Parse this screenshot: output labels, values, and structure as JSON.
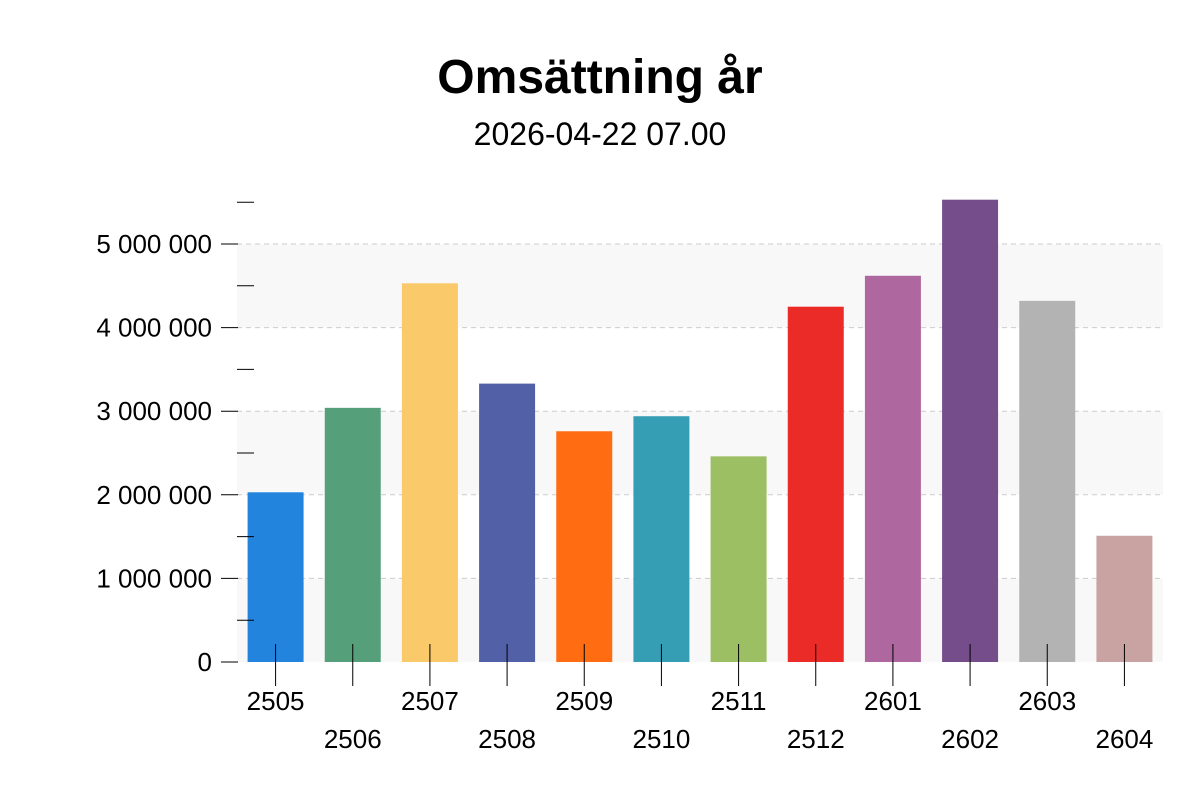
{
  "chart_data": {
    "type": "bar",
    "title": "Omsättning år",
    "subtitle": "2026-04-22 07.00",
    "xlabel": "",
    "ylabel": "",
    "categories": [
      "2505",
      "2506",
      "2507",
      "2508",
      "2509",
      "2510",
      "2511",
      "2512",
      "2601",
      "2602",
      "2603",
      "2604"
    ],
    "values": [
      2030000,
      3040000,
      4530000,
      3330000,
      2760000,
      2940000,
      2460000,
      4250000,
      4620000,
      5530000,
      4320000,
      1510000
    ],
    "colors": [
      "#2384DE",
      "#55A07A",
      "#FAC96A",
      "#5260A8",
      "#FF6C12",
      "#359EB4",
      "#9DBF63",
      "#EA2B28",
      "#AF679F",
      "#754D8A",
      "#B3B3B3",
      "#C9A3A2"
    ],
    "ylim": [
      0,
      5500000
    ],
    "yticks": [
      {
        "value": 0,
        "label": "0"
      },
      {
        "value": 1000000,
        "label": "1 000 000"
      },
      {
        "value": 2000000,
        "label": "2 000 000"
      },
      {
        "value": 3000000,
        "label": "3 000 000"
      },
      {
        "value": 4000000,
        "label": "4 000 000"
      },
      {
        "value": 5000000,
        "label": "5 000 000"
      }
    ],
    "minor_yticks": [
      500000,
      1500000,
      2500000,
      3500000,
      4500000,
      5500000
    ],
    "grid": true,
    "grid_style": "dashed",
    "band_color": "#F8F8F8",
    "grid_color": "#CCCCCC",
    "legend": "none"
  }
}
